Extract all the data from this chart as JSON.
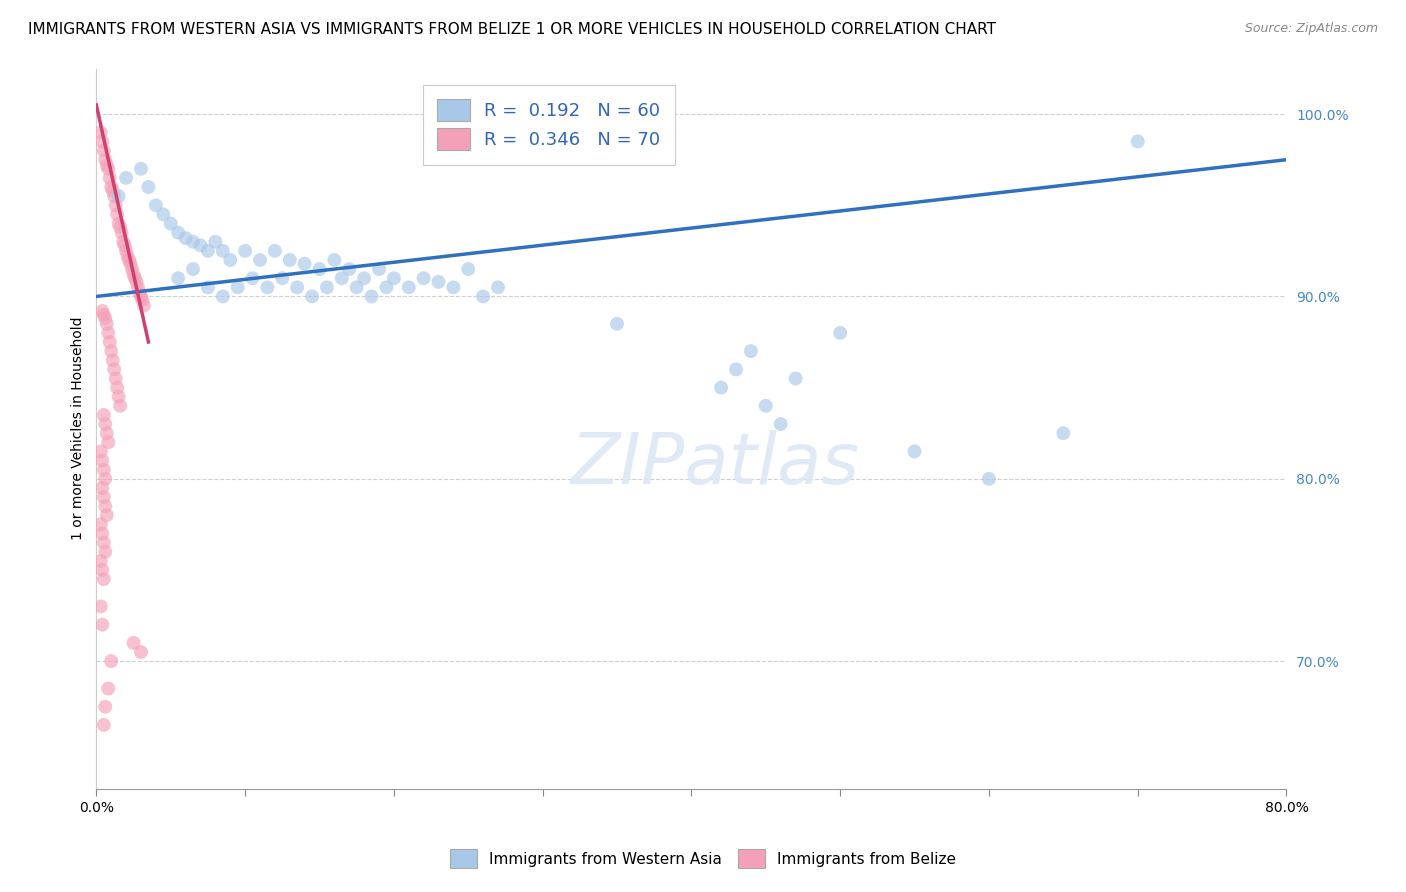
{
  "title": "IMMIGRANTS FROM WESTERN ASIA VS IMMIGRANTS FROM BELIZE 1 OR MORE VEHICLES IN HOUSEHOLD CORRELATION CHART",
  "source": "Source: ZipAtlas.com",
  "ylabel": "1 or more Vehicles in Household",
  "legend_r_blue": "R =  0.192",
  "legend_n_blue": "N = 60",
  "legend_r_pink": "R =  0.346",
  "legend_n_pink": "N = 70",
  "legend_label_blue": "Immigrants from Western Asia",
  "legend_label_pink": "Immigrants from Belize",
  "blue_color": "#a8c8e8",
  "pink_color": "#f4a0b8",
  "blue_line_color": "#3070c0",
  "pink_line_color": "#d04070",
  "scatter_alpha": 0.65,
  "scatter_size": 100,
  "western_asia_x": [
    1.5,
    2.0,
    3.0,
    3.5,
    4.0,
    4.5,
    5.0,
    5.5,
    6.0,
    6.5,
    7.0,
    7.5,
    8.0,
    8.5,
    9.0,
    10.0,
    11.0,
    12.0,
    13.0,
    14.0,
    15.0,
    16.0,
    17.0,
    18.0,
    19.0,
    20.0,
    21.0,
    22.0,
    23.0,
    24.0,
    25.0,
    26.0,
    27.0,
    5.5,
    6.5,
    7.5,
    8.5,
    9.5,
    10.5,
    11.5,
    12.5,
    13.5,
    14.5,
    15.5,
    16.5,
    17.5,
    18.5,
    19.5,
    35.0,
    42.0,
    43.0,
    44.0,
    45.0,
    46.0,
    47.0,
    50.0,
    55.0,
    60.0,
    65.0,
    70.0
  ],
  "western_asia_y": [
    95.5,
    96.5,
    97.0,
    96.0,
    95.0,
    94.5,
    94.0,
    93.5,
    93.2,
    93.0,
    92.8,
    92.5,
    93.0,
    92.5,
    92.0,
    92.5,
    92.0,
    92.5,
    92.0,
    91.8,
    91.5,
    92.0,
    91.5,
    91.0,
    91.5,
    91.0,
    90.5,
    91.0,
    90.8,
    90.5,
    91.5,
    90.0,
    90.5,
    91.0,
    91.5,
    90.5,
    90.0,
    90.5,
    91.0,
    90.5,
    91.0,
    90.5,
    90.0,
    90.5,
    91.0,
    90.5,
    90.0,
    90.5,
    88.5,
    85.0,
    86.0,
    87.0,
    84.0,
    83.0,
    85.5,
    88.0,
    81.5,
    80.0,
    82.5,
    98.5
  ],
  "belize_x": [
    0.3,
    0.4,
    0.5,
    0.6,
    0.7,
    0.8,
    0.9,
    1.0,
    1.1,
    1.2,
    1.3,
    1.4,
    1.5,
    1.6,
    1.7,
    1.8,
    1.9,
    2.0,
    2.1,
    2.2,
    2.3,
    2.4,
    2.5,
    2.6,
    2.7,
    2.8,
    2.9,
    3.0,
    3.1,
    3.2,
    0.4,
    0.5,
    0.6,
    0.7,
    0.8,
    0.9,
    1.0,
    1.1,
    1.2,
    1.3,
    1.4,
    1.5,
    1.6,
    0.5,
    0.6,
    0.7,
    0.8,
    0.3,
    0.4,
    0.5,
    0.6,
    0.4,
    0.5,
    0.6,
    0.7,
    0.3,
    0.4,
    0.5,
    0.6,
    0.3,
    0.4,
    0.5,
    0.3,
    0.4,
    2.5,
    3.0,
    1.0,
    0.8,
    0.6,
    0.5
  ],
  "belize_y": [
    99.0,
    98.5,
    98.0,
    97.5,
    97.2,
    97.0,
    96.5,
    96.0,
    95.8,
    95.5,
    95.0,
    94.5,
    94.0,
    93.8,
    93.5,
    93.0,
    92.8,
    92.5,
    92.2,
    92.0,
    91.8,
    91.5,
    91.2,
    91.0,
    90.8,
    90.5,
    90.2,
    90.0,
    89.8,
    89.5,
    89.2,
    89.0,
    88.8,
    88.5,
    88.0,
    87.5,
    87.0,
    86.5,
    86.0,
    85.5,
    85.0,
    84.5,
    84.0,
    83.5,
    83.0,
    82.5,
    82.0,
    81.5,
    81.0,
    80.5,
    80.0,
    79.5,
    79.0,
    78.5,
    78.0,
    77.5,
    77.0,
    76.5,
    76.0,
    75.5,
    75.0,
    74.5,
    73.0,
    72.0,
    71.0,
    70.5,
    70.0,
    68.5,
    67.5,
    66.5
  ],
  "blue_trendline_x": [
    0.0,
    80.0
  ],
  "blue_trendline_y": [
    90.0,
    97.5
  ],
  "pink_trendline_x": [
    0.0,
    3.5
  ],
  "pink_trendline_y": [
    100.5,
    87.5
  ],
  "xlim": [
    0.0,
    80.0
  ],
  "ylim": [
    63.0,
    102.5
  ],
  "x_tick_values": [
    0.0,
    10.0,
    20.0,
    30.0,
    40.0,
    50.0,
    60.0,
    70.0,
    80.0
  ],
  "y_tick_values": [
    70.0,
    80.0,
    90.0,
    100.0
  ],
  "background_color": "#ffffff",
  "grid_color": "#d0d0d0",
  "title_fontsize": 11,
  "axis_fontsize": 10,
  "tick_fontsize": 10,
  "source_fontsize": 9
}
